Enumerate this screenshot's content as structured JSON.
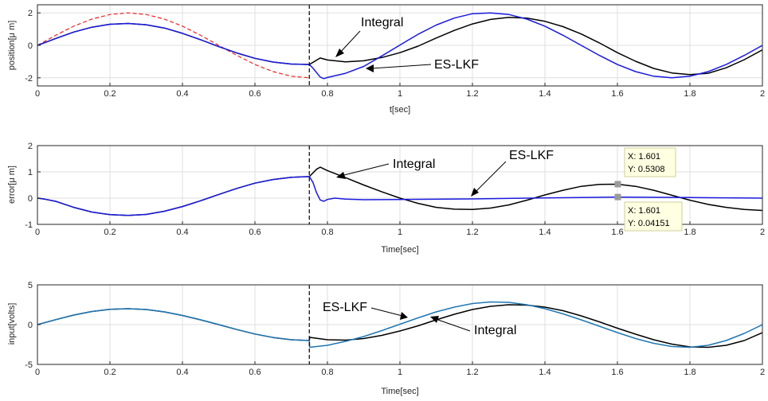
{
  "chart_data": [
    {
      "type": "line",
      "xlabel": "t[sec]",
      "ylabel": "position[μ m]",
      "xlim": [
        0,
        2
      ],
      "ylim": [
        -2.5,
        2.5
      ],
      "xticks": [
        0,
        0.2,
        0.4,
        0.6,
        0.8,
        1,
        1.2,
        1.4,
        1.6,
        1.8,
        2
      ],
      "yticks": [
        -2,
        0,
        2
      ],
      "grid": true,
      "vline_x": 0.75,
      "series": [
        {
          "color": "#ee2222",
          "dash": true,
          "x": [
            0,
            0.05,
            0.1,
            0.15,
            0.2,
            0.25,
            0.3,
            0.35,
            0.4,
            0.45,
            0.5,
            0.55,
            0.6,
            0.65,
            0.7,
            0.75
          ],
          "y": [
            0,
            0.62,
            1.18,
            1.62,
            1.9,
            2.0,
            1.9,
            1.62,
            1.18,
            0.62,
            0,
            -0.62,
            -1.18,
            -1.62,
            -1.9,
            -2.0
          ]
        },
        {
          "color": "#000000",
          "x": [
            0,
            0.05,
            0.1,
            0.15,
            0.2,
            0.25,
            0.3,
            0.35,
            0.4,
            0.45,
            0.5,
            0.55,
            0.6,
            0.65,
            0.7,
            0.75,
            0.76,
            0.78,
            0.8,
            0.85,
            0.9,
            0.95,
            1.0,
            1.05,
            1.1,
            1.15,
            1.2,
            1.25,
            1.3,
            1.35,
            1.4,
            1.45,
            1.5,
            1.55,
            1.6,
            1.65,
            1.7,
            1.75,
            1.8,
            1.85,
            1.9,
            1.95,
            2.0
          ],
          "y": [
            0,
            0.42,
            0.82,
            1.12,
            1.3,
            1.35,
            1.27,
            1.07,
            0.74,
            0.35,
            -0.08,
            -0.47,
            -0.8,
            -1.03,
            -1.15,
            -1.18,
            -1.05,
            -0.78,
            -0.9,
            -1.02,
            -0.95,
            -0.75,
            -0.45,
            -0.05,
            0.45,
            0.92,
            1.32,
            1.6,
            1.72,
            1.68,
            1.48,
            1.15,
            0.7,
            0.15,
            -0.45,
            -0.98,
            -1.42,
            -1.7,
            -1.8,
            -1.72,
            -1.38,
            -0.88,
            -0.28
          ]
        },
        {
          "color": "#1a1adf",
          "x": [
            0,
            0.05,
            0.1,
            0.15,
            0.2,
            0.25,
            0.3,
            0.35,
            0.4,
            0.45,
            0.5,
            0.55,
            0.6,
            0.65,
            0.7,
            0.75,
            0.76,
            0.78,
            0.79,
            0.8,
            0.85,
            0.9,
            0.95,
            1.0,
            1.05,
            1.1,
            1.15,
            1.2,
            1.25,
            1.3,
            1.35,
            1.4,
            1.45,
            1.5,
            1.55,
            1.6,
            1.65,
            1.7,
            1.75,
            1.8,
            1.85,
            1.9,
            1.95,
            2.0
          ],
          "y": [
            0,
            0.42,
            0.82,
            1.12,
            1.3,
            1.35,
            1.27,
            1.07,
            0.74,
            0.35,
            -0.08,
            -0.47,
            -0.8,
            -1.03,
            -1.15,
            -1.18,
            -1.4,
            -1.95,
            -2.05,
            -1.98,
            -1.72,
            -1.3,
            -0.65,
            0.02,
            0.68,
            1.25,
            1.68,
            1.95,
            2.0,
            1.9,
            1.62,
            1.18,
            0.62,
            0,
            -0.62,
            -1.18,
            -1.62,
            -1.9,
            -2.0,
            -1.9,
            -1.62,
            -1.18,
            -0.62,
            0
          ]
        }
      ]
    },
    {
      "type": "line",
      "xlabel": "Time[sec]",
      "ylabel": "error[μ m]",
      "xlim": [
        0,
        2
      ],
      "ylim": [
        -1,
        2
      ],
      "xticks": [
        0,
        0.2,
        0.4,
        0.6,
        0.8,
        1,
        1.2,
        1.4,
        1.6,
        1.8,
        2
      ],
      "yticks": [
        -1,
        0,
        1,
        2
      ],
      "grid": true,
      "vline_x": 0.75,
      "series": [
        {
          "color": "#000000",
          "x": [
            0,
            0.02,
            0.05,
            0.1,
            0.15,
            0.2,
            0.25,
            0.3,
            0.35,
            0.4,
            0.45,
            0.5,
            0.55,
            0.6,
            0.65,
            0.7,
            0.75,
            0.77,
            0.78,
            0.8,
            0.85,
            0.9,
            0.95,
            1.0,
            1.05,
            1.1,
            1.15,
            1.2,
            1.25,
            1.3,
            1.35,
            1.4,
            1.45,
            1.5,
            1.55,
            1.6,
            1.65,
            1.7,
            1.75,
            1.8,
            1.85,
            1.9,
            1.95,
            2.0
          ],
          "y": [
            0,
            -0.04,
            -0.12,
            -0.35,
            -0.53,
            -0.63,
            -0.66,
            -0.62,
            -0.5,
            -0.32,
            -0.1,
            0.14,
            0.37,
            0.57,
            0.71,
            0.79,
            0.82,
            1.1,
            1.18,
            1.05,
            0.78,
            0.5,
            0.24,
            0.0,
            -0.2,
            -0.35,
            -0.42,
            -0.43,
            -0.38,
            -0.26,
            -0.08,
            0.12,
            0.3,
            0.45,
            0.52,
            0.53,
            0.45,
            0.3,
            0.11,
            -0.08,
            -0.24,
            -0.35,
            -0.43,
            -0.47
          ]
        },
        {
          "color": "#1a1adf",
          "x": [
            0,
            0.02,
            0.05,
            0.1,
            0.15,
            0.2,
            0.25,
            0.3,
            0.35,
            0.4,
            0.45,
            0.5,
            0.55,
            0.6,
            0.65,
            0.7,
            0.75,
            0.76,
            0.77,
            0.78,
            0.79,
            0.8,
            0.82,
            0.85,
            0.9,
            1.0,
            1.2,
            1.4,
            1.6,
            1.8,
            2.0
          ],
          "y": [
            0,
            -0.04,
            -0.12,
            -0.35,
            -0.53,
            -0.63,
            -0.66,
            -0.62,
            -0.5,
            -0.32,
            -0.1,
            0.14,
            0.37,
            0.57,
            0.71,
            0.79,
            0.82,
            0.6,
            0.2,
            -0.07,
            -0.12,
            -0.05,
            0.0,
            -0.04,
            -0.06,
            -0.05,
            -0.03,
            0.01,
            0.04,
            0.02,
            0.0
          ]
        }
      ]
    },
    {
      "type": "line",
      "xlabel": "Time[sec]",
      "ylabel": "input[volts]",
      "xlim": [
        0,
        2
      ],
      "ylim": [
        -5,
        5
      ],
      "xticks": [
        0,
        0.2,
        0.4,
        0.6,
        0.8,
        1,
        1.2,
        1.4,
        1.6,
        1.8,
        2
      ],
      "yticks": [
        -5,
        0,
        5
      ],
      "grid": true,
      "vline_x": 0.75,
      "series": [
        {
          "color": "#000000",
          "x": [
            0,
            0.05,
            0.1,
            0.15,
            0.2,
            0.25,
            0.3,
            0.35,
            0.4,
            0.45,
            0.5,
            0.55,
            0.6,
            0.65,
            0.7,
            0.75,
            0.751,
            0.8,
            0.85,
            0.9,
            0.95,
            1.0,
            1.05,
            1.1,
            1.15,
            1.2,
            1.25,
            1.3,
            1.35,
            1.4,
            1.45,
            1.5,
            1.55,
            1.6,
            1.65,
            1.7,
            1.75,
            1.8,
            1.85,
            1.9,
            1.95,
            2.0
          ],
          "y": [
            0,
            0.62,
            1.2,
            1.65,
            1.92,
            2.0,
            1.9,
            1.6,
            1.15,
            0.6,
            0,
            -0.62,
            -1.18,
            -1.62,
            -1.9,
            -2.0,
            -1.6,
            -1.9,
            -1.95,
            -1.75,
            -1.35,
            -0.8,
            -0.15,
            0.6,
            1.3,
            1.9,
            2.3,
            2.5,
            2.45,
            2.2,
            1.75,
            1.1,
            0.35,
            -0.45,
            -1.2,
            -1.9,
            -2.45,
            -2.8,
            -2.85,
            -2.6,
            -2.0,
            -1.0
          ]
        },
        {
          "color": "#1f77b4",
          "x": [
            0,
            0.05,
            0.1,
            0.15,
            0.2,
            0.25,
            0.3,
            0.35,
            0.4,
            0.45,
            0.5,
            0.55,
            0.6,
            0.65,
            0.7,
            0.75,
            0.751,
            0.8,
            0.85,
            0.9,
            0.95,
            1.0,
            1.05,
            1.1,
            1.15,
            1.2,
            1.25,
            1.3,
            1.35,
            1.4,
            1.45,
            1.5,
            1.55,
            1.6,
            1.65,
            1.7,
            1.75,
            1.8,
            1.85,
            1.9,
            1.95,
            2.0
          ],
          "y": [
            0,
            0.62,
            1.2,
            1.65,
            1.92,
            2.0,
            1.9,
            1.6,
            1.15,
            0.6,
            0,
            -0.62,
            -1.18,
            -1.62,
            -1.9,
            -2.0,
            -2.85,
            -2.6,
            -2.1,
            -1.5,
            -0.75,
            0.05,
            0.85,
            1.6,
            2.2,
            2.65,
            2.85,
            2.8,
            2.5,
            2.0,
            1.35,
            0.6,
            -0.2,
            -1.0,
            -1.75,
            -2.35,
            -2.75,
            -2.85,
            -2.6,
            -2.0,
            -1.1,
            0.0
          ]
        }
      ]
    }
  ],
  "annotations": {
    "p1_integral": "Integral",
    "p1_eslkf": "ES-LKF",
    "p2_integral": "Integral",
    "p2_eslkf": "ES-LKF",
    "p3_eslkf": "ES-LKF",
    "p3_integral": "Integral"
  },
  "datatips": [
    {
      "x_label": "X: 1.601",
      "y_label": "Y: 0.5308",
      "x": 1.601,
      "y": 0.5308
    },
    {
      "x_label": "X: 1.601",
      "y_label": "Y: 0.04151",
      "x": 1.601,
      "y": 0.04151
    }
  ]
}
